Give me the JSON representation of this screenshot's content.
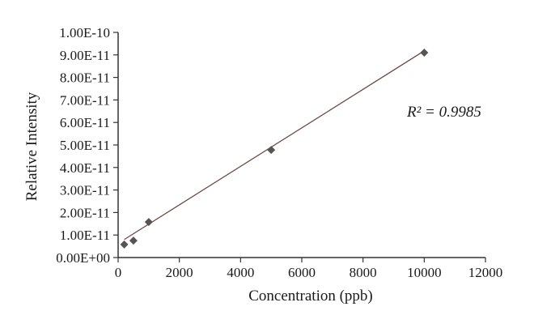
{
  "chart_data": {
    "type": "scatter",
    "title": "",
    "xlabel": "Concentration (ppb)",
    "ylabel": "Relative Intensity",
    "xlim": [
      0,
      12000
    ],
    "ylim": [
      0,
      1e-10
    ],
    "x_ticks": [
      0,
      2000,
      4000,
      6000,
      8000,
      10000,
      12000
    ],
    "x_tick_labels": [
      "0",
      "2000",
      "4000",
      "6000",
      "8000",
      "10000",
      "12000"
    ],
    "y_ticks": [
      0,
      1e-11,
      2e-11,
      3e-11,
      4e-11,
      5e-11,
      6e-11,
      7e-11,
      8e-11,
      9e-11,
      1e-10
    ],
    "y_tick_labels": [
      "0.00E+00",
      "1.00E-11",
      "2.00E-11",
      "3.00E-11",
      "4.00E-11",
      "5.00E-11",
      "6.00E-11",
      "7.00E-11",
      "8.00E-11",
      "9.00E-11",
      "1.00E-10"
    ],
    "grid": false,
    "series": [
      {
        "marker": "diamond",
        "color": "#555555",
        "x": [
          200,
          500,
          1000,
          5000,
          10000
        ],
        "y": [
          5.8e-12,
          7.5e-12,
          1.58e-11,
          4.78e-11,
          9.1e-11
        ]
      }
    ],
    "trendline": {
      "type": "linear",
      "color": "#6b4a4a",
      "x_range": [
        200,
        10000
      ],
      "y_range": [
        8e-12,
        9.18e-11
      ]
    },
    "annotation": {
      "text": "R² = 0.9985"
    }
  }
}
